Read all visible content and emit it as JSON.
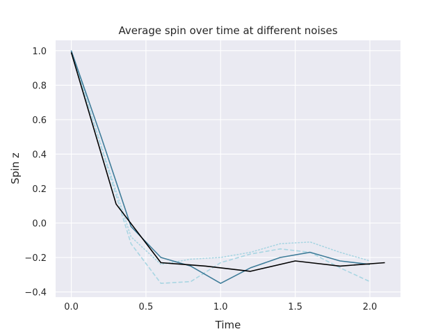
{
  "chart_data": {
    "type": "line",
    "title": "Average spin over time at different noises",
    "xlabel": "Time",
    "ylabel": "Spin z",
    "xlim": [
      -0.105,
      2.205
    ],
    "ylim": [
      -0.43,
      1.06
    ],
    "xticks": [
      0.0,
      0.5,
      1.0,
      1.5,
      2.0
    ],
    "xtick_labels": [
      "0.0",
      "0.5",
      "1.0",
      "1.5",
      "2.0"
    ],
    "yticks": [
      1.0,
      0.8,
      0.6,
      0.4,
      0.2,
      0.0,
      -0.2,
      -0.4
    ],
    "ytick_labels": [
      "1.0",
      "0.8",
      "0.6",
      "0.4",
      "0.2",
      "0.0",
      "−0.2",
      "−0.4"
    ],
    "grid": true,
    "background": "#EAEAF2",
    "series": [
      {
        "style": "dotted",
        "color": "#A8D5E2",
        "x": [
          0.0,
          0.2,
          0.4,
          0.6,
          0.8,
          1.0,
          1.2,
          1.4,
          1.6,
          1.8,
          2.0
        ],
        "y": [
          1.0,
          0.45,
          -0.08,
          -0.24,
          -0.21,
          -0.2,
          -0.17,
          -0.12,
          -0.11,
          -0.17,
          -0.22
        ]
      },
      {
        "style": "dashed",
        "color": "#A8D5E2",
        "x": [
          0.0,
          0.2,
          0.4,
          0.6,
          0.8,
          1.0,
          1.2,
          1.4,
          1.6,
          1.8,
          2.0
        ],
        "y": [
          1.0,
          0.44,
          -0.12,
          -0.35,
          -0.34,
          -0.23,
          -0.18,
          -0.15,
          -0.17,
          -0.26,
          -0.34
        ]
      },
      {
        "style": "solid",
        "color": "#3E7C99",
        "x": [
          0.0,
          0.2,
          0.4,
          0.6,
          0.8,
          1.0,
          1.2,
          1.4,
          1.6,
          1.8,
          2.0
        ],
        "y": [
          1.0,
          0.5,
          -0.02,
          -0.2,
          -0.25,
          -0.35,
          -0.26,
          -0.2,
          -0.17,
          -0.22,
          -0.24
        ]
      },
      {
        "style": "solid",
        "color": "#000000",
        "x": [
          0.0,
          0.3,
          0.6,
          0.9,
          1.2,
          1.5,
          1.8,
          2.1
        ],
        "y": [
          0.99,
          0.11,
          -0.23,
          -0.25,
          -0.28,
          -0.22,
          -0.25,
          -0.23
        ]
      }
    ]
  }
}
